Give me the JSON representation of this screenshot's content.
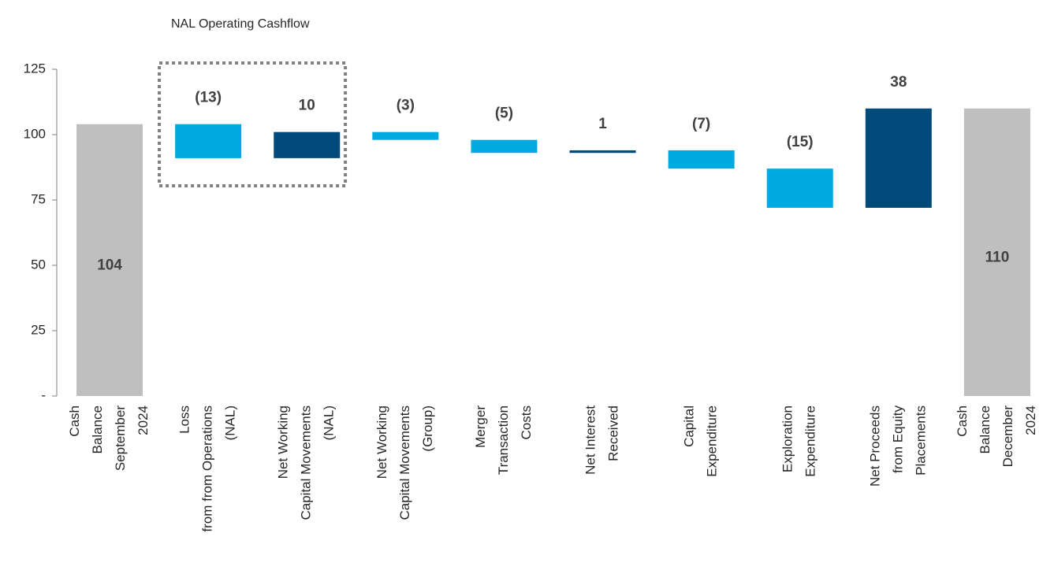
{
  "chart_data": {
    "type": "waterfall",
    "title": "NAL Operating Cashflow",
    "categories": [
      [
        "Cash",
        "Balance",
        "September",
        "2024"
      ],
      [
        "Loss",
        "from from Operations",
        "(NAL)"
      ],
      [
        "Net Working",
        "Capital Movements",
        "(NAL)"
      ],
      [
        "Net Working",
        "Capital Movements",
        "(Group)"
      ],
      [
        "Merger",
        "Transaction",
        "Costs"
      ],
      [
        "Net Interest",
        "Received"
      ],
      [
        "Capital",
        "Expenditure"
      ],
      [
        "Exploration",
        "Expenditure"
      ],
      [
        "Net Proceeds",
        "from Equity",
        "Placements"
      ],
      [
        "Cash",
        "Balance",
        "December",
        "2024"
      ]
    ],
    "values": [
      104,
      -13,
      10,
      -3,
      -5,
      1,
      -7,
      -15,
      38,
      110
    ],
    "value_labels": [
      "104",
      "(13)",
      "10",
      "(3)",
      "(5)",
      "1",
      "(7)",
      "(15)",
      "38",
      "110"
    ],
    "totals": [
      0,
      9
    ],
    "total_color": "#bfbfbf",
    "increase_color": "#004b7a",
    "decrease_color": "#00a9e0",
    "ylim": [
      0,
      125
    ],
    "yticks": [
      {
        "value": 0,
        "label": "-"
      },
      25,
      50,
      75,
      100,
      125
    ]
  }
}
